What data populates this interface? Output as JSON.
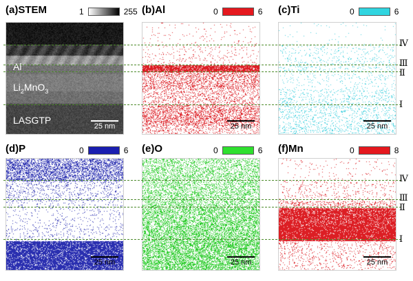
{
  "panels": [
    {
      "id": "a",
      "title": "(a)STEM",
      "cmin": "1",
      "cmax": "255",
      "gradient": "linear-gradient(to right,#ffffff,#000000)",
      "color": "#888888",
      "scale": "25 nm",
      "labels": {
        "al": "Al",
        "li_main": "Li",
        "li_sub1": "2",
        "li_mid": "MnO",
        "li_sub2": "3",
        "lasgtp": "LASGTP"
      }
    },
    {
      "id": "b",
      "title": "(b)Al",
      "cmin": "0",
      "cmax": "6",
      "gradient": "#e5181e",
      "color": "#dc1e24",
      "scale": "25 nm",
      "profile": [
        0.02,
        0.05,
        0.85,
        0.3,
        0.18,
        0.35,
        0.18
      ]
    },
    {
      "id": "c",
      "title": "(c)Ti",
      "cmin": "0",
      "cmax": "6",
      "gradient": "#30d5e0",
      "color": "#3ecfde",
      "scale": "25 nm",
      "profile": [
        0.01,
        0.06,
        0.07,
        0.05,
        0.11,
        0.12,
        0.14
      ]
    },
    {
      "id": "d",
      "title": "(d)P",
      "cmin": "0",
      "cmax": "6",
      "gradient": "#1a1eb0",
      "color": "#2a2fb0",
      "scale": "25 nm",
      "profile": [
        0.45,
        0.12,
        0.06,
        0.05,
        0.07,
        0.85,
        0.85
      ]
    },
    {
      "id": "e",
      "title": "(e)O",
      "cmin": "0",
      "cmax": "6",
      "gradient": "#2ee02e",
      "color": "#2ccc2c",
      "scale": "25 nm",
      "profile": [
        0.3,
        0.32,
        0.35,
        0.42,
        0.45,
        0.48,
        0.5
      ]
    },
    {
      "id": "f",
      "title": "(f)Mn",
      "cmin": "0",
      "cmax": "8",
      "gradient": "#e5181e",
      "color": "#dc1e24",
      "scale": "25 nm",
      "profile": [
        0.02,
        0.06,
        0.2,
        0.85,
        0.92,
        0.1,
        0.08
      ]
    }
  ],
  "layers": [
    "Ⅳ",
    "Ⅲ",
    "Ⅱ",
    "Ⅰ"
  ]
}
